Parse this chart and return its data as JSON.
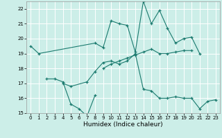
{
  "title": "",
  "xlabel": "Humidex (Indice chaleur)",
  "bg_color": "#cceee8",
  "grid_color": "#ffffff",
  "line_color": "#1a7a6e",
  "xlim": [
    -0.5,
    23.5
  ],
  "ylim": [
    15,
    22.5
  ],
  "yticks": [
    15,
    16,
    17,
    18,
    19,
    20,
    21,
    22
  ],
  "xticks": [
    0,
    1,
    2,
    3,
    4,
    5,
    6,
    7,
    8,
    9,
    10,
    11,
    12,
    13,
    14,
    15,
    16,
    17,
    18,
    19,
    20,
    21,
    22,
    23
  ],
  "series": [
    {
      "x": [
        0,
        1,
        8,
        9,
        10,
        11,
        12,
        13,
        14,
        15,
        16,
        17,
        18,
        19,
        20,
        21
      ],
      "y": [
        19.5,
        19.0,
        19.7,
        19.4,
        21.2,
        21.0,
        20.9,
        19.1,
        22.5,
        21.0,
        21.9,
        20.7,
        19.7,
        20.0,
        20.1,
        19.0
      ]
    },
    {
      "x": [
        2,
        3,
        4,
        5,
        6,
        7,
        8
      ],
      "y": [
        17.3,
        17.3,
        17.1,
        15.6,
        15.3,
        14.8,
        16.2
      ]
    },
    {
      "x": [
        4,
        5,
        7,
        8,
        9,
        10,
        11,
        12,
        13,
        14,
        15,
        16,
        17,
        18,
        19,
        20,
        21,
        22,
        23
      ],
      "y": [
        17.0,
        16.8,
        17.1,
        17.8,
        18.4,
        18.5,
        18.3,
        18.5,
        19.0,
        16.6,
        16.5,
        16.0,
        16.0,
        16.1,
        16.0,
        16.0,
        15.3,
        15.8,
        15.9
      ]
    },
    {
      "x": [
        9,
        10,
        11,
        12,
        13,
        14,
        15,
        16,
        17,
        18,
        19,
        20
      ],
      "y": [
        18.0,
        18.3,
        18.5,
        18.7,
        18.9,
        19.1,
        19.3,
        19.0,
        19.0,
        19.1,
        19.2,
        19.2
      ]
    }
  ]
}
